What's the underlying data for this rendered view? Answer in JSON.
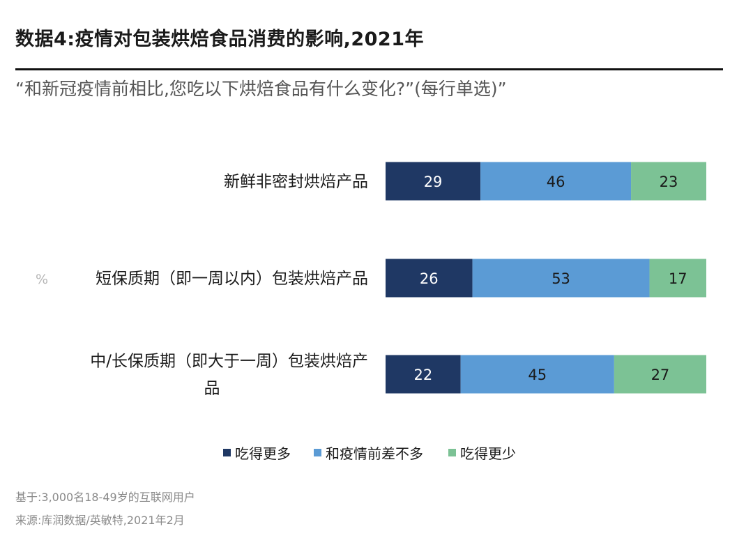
{
  "header": {
    "title": "数据4:疫情对包装烘焙食品消费的影响,2021年",
    "subtitle": "“和新冠疫情前相比,您吃以下烘焙食品有什么变化?”(每行单选)”"
  },
  "chart_data": {
    "type": "bar",
    "orientation": "horizontal",
    "stacked": true,
    "unit_label": "%",
    "categories": [
      [
        "新鲜非密封烘焙产品"
      ],
      [
        "短保质期（即一周以内）包装烘焙产品"
      ],
      [
        "中/长保质期（即大于一周）包装烘焙产",
        "品"
      ]
    ],
    "series": [
      {
        "name": "吃得更多",
        "color": "#1f3864",
        "values": [
          29,
          26,
          22
        ]
      },
      {
        "name": "和疫情前差不多",
        "color": "#5b9bd5",
        "values": [
          46,
          53,
          45
        ]
      },
      {
        "name": "吃得更少",
        "color": "#7cc295",
        "values": [
          23,
          17,
          27
        ]
      }
    ],
    "legend_position": "bottom",
    "grid": false
  },
  "footer": {
    "base": "基于:3,000名18-49岁的互联网用户",
    "source": "来源:库润数据/英敏特,2021年2月"
  }
}
